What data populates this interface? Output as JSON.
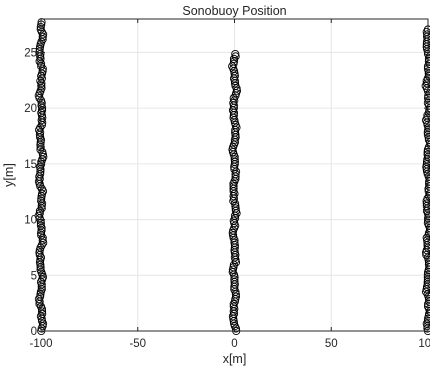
{
  "chart_data": {
    "type": "scatter",
    "title": "Sonobuoy Position",
    "xlabel": "x[m]",
    "ylabel": "y[m]",
    "xlim": [
      -100,
      100
    ],
    "ylim": [
      0,
      28
    ],
    "xticks": [
      -100,
      -50,
      0,
      50,
      100
    ],
    "yticks": [
      0,
      5,
      10,
      15,
      20,
      25
    ],
    "grid": true,
    "marker": "open-circle",
    "marker_color": "#000000",
    "series": [
      {
        "x_center": -100,
        "y_range": [
          0,
          27.8
        ]
      },
      {
        "x_center": 0,
        "y_range": [
          0,
          25
        ]
      },
      {
        "x_center": 100,
        "y_range": [
          0,
          27.2
        ]
      }
    ]
  }
}
